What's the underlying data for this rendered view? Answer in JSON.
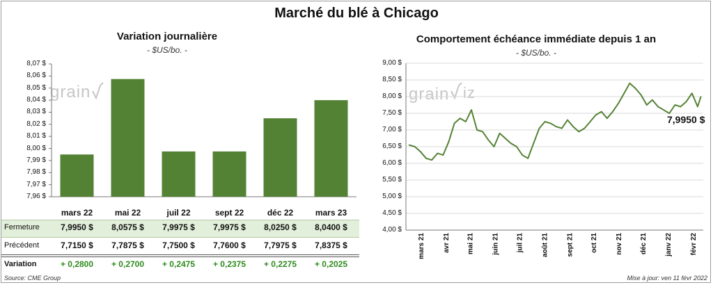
{
  "title": "Marché du blé à Chicago",
  "left_chart": {
    "subtitle": "Variation  journalière",
    "unit": "- $US/bo. -",
    "watermark": "grain",
    "yticks": [
      "8,07 $",
      "8,06 $",
      "8,05 $",
      "8,04 $",
      "8,03 $",
      "8,02 $",
      "8,01 $",
      "8,00 $",
      "7,99 $",
      "7,98 $",
      "7,97 $",
      "7,96 $"
    ]
  },
  "right_chart": {
    "subtitle": "Comportement  échéance immédiate depuis 1 an",
    "unit": "- $US/bo. -",
    "watermark": "grain",
    "yticks": [
      "9,00 $",
      "8,50 $",
      "8,00 $",
      "7,50 $",
      "7,00 $",
      "6,50 $",
      "6,00 $",
      "5,50 $",
      "5,00 $",
      "4,50 $",
      "4,00 $"
    ],
    "xticks": [
      "mars 21",
      "avr 21",
      "mai 21",
      "juin 21",
      "juil 21",
      "août 21",
      "sept 21",
      "oct 21",
      "nov 21",
      "déc 21",
      "janv 22",
      "févr 22"
    ],
    "last_label": "7,9950 $"
  },
  "table": {
    "rows": [
      {
        "label": "Fermeture",
        "values": [
          "7,9950  $",
          "8,0575  $",
          "7,9975  $",
          "7,9975  $",
          "8,0250  $",
          "8,0400  $"
        ]
      },
      {
        "label": "Précédent",
        "values": [
          "7,7150  $",
          "7,7875  $",
          "7,7500  $",
          "7,7600  $",
          "7,7975  $",
          "7,8375  $"
        ]
      },
      {
        "label": "Variation",
        "values": [
          "+ 0,2800",
          "+ 0,2700",
          "+ 0,2475",
          "+ 0,2375",
          "+ 0,2275",
          "+ 0,2025"
        ]
      }
    ]
  },
  "footer": {
    "source": "Source: CME Group",
    "updated": "Mise à jour: ven 11 févr 2022"
  },
  "colors": {
    "bar": "#548235",
    "line": "#548235",
    "fermeture_bg": "#e2efda",
    "variation_text": "#2e8b1e"
  },
  "chart_data": [
    {
      "type": "bar",
      "title": "Variation  journalière",
      "ylabel": "- $US/bo. -",
      "categories": [
        "mars 22",
        "mai 22",
        "juil 22",
        "sept 22",
        "déc 22",
        "mars 23"
      ],
      "values": [
        7.995,
        8.0575,
        7.9975,
        7.9975,
        8.025,
        8.04
      ],
      "ylim": [
        7.96,
        8.07
      ]
    },
    {
      "type": "line",
      "title": "Comportement  échéance immédiate depuis 1 an",
      "ylabel": "- $US/bo. -",
      "ylim": [
        4.0,
        9.0
      ],
      "x": [
        "2021-02-15",
        "2021-02-22",
        "2021-03-01",
        "2021-03-08",
        "2021-03-15",
        "2021-03-22",
        "2021-03-29",
        "2021-04-05",
        "2021-04-12",
        "2021-04-19",
        "2021-04-26",
        "2021-05-03",
        "2021-05-10",
        "2021-05-17",
        "2021-05-24",
        "2021-05-31",
        "2021-06-07",
        "2021-06-14",
        "2021-06-21",
        "2021-06-28",
        "2021-07-05",
        "2021-07-12",
        "2021-07-19",
        "2021-07-26",
        "2021-08-02",
        "2021-08-09",
        "2021-08-16",
        "2021-08-23",
        "2021-08-30",
        "2021-09-06",
        "2021-09-13",
        "2021-09-20",
        "2021-09-27",
        "2021-10-04",
        "2021-10-11",
        "2021-10-18",
        "2021-10-25",
        "2021-11-01",
        "2021-11-08",
        "2021-11-15",
        "2021-11-22",
        "2021-11-29",
        "2021-12-06",
        "2021-12-13",
        "2021-12-20",
        "2021-12-27",
        "2022-01-03",
        "2022-01-10",
        "2022-01-17",
        "2022-01-24",
        "2022-01-31",
        "2022-02-07",
        "2022-02-11"
      ],
      "values": [
        6.55,
        6.5,
        6.35,
        6.15,
        6.1,
        6.3,
        6.25,
        6.65,
        7.2,
        7.35,
        7.25,
        7.6,
        7.0,
        6.95,
        6.7,
        6.5,
        6.9,
        6.75,
        6.6,
        6.5,
        6.25,
        6.15,
        6.6,
        7.05,
        7.25,
        7.2,
        7.1,
        7.05,
        7.3,
        7.1,
        6.95,
        7.05,
        7.25,
        7.45,
        7.55,
        7.35,
        7.55,
        7.8,
        8.1,
        8.4,
        8.25,
        8.05,
        7.75,
        7.9,
        7.7,
        7.6,
        7.5,
        7.75,
        7.7,
        7.85,
        8.1,
        7.7,
        7.995
      ]
    }
  ]
}
